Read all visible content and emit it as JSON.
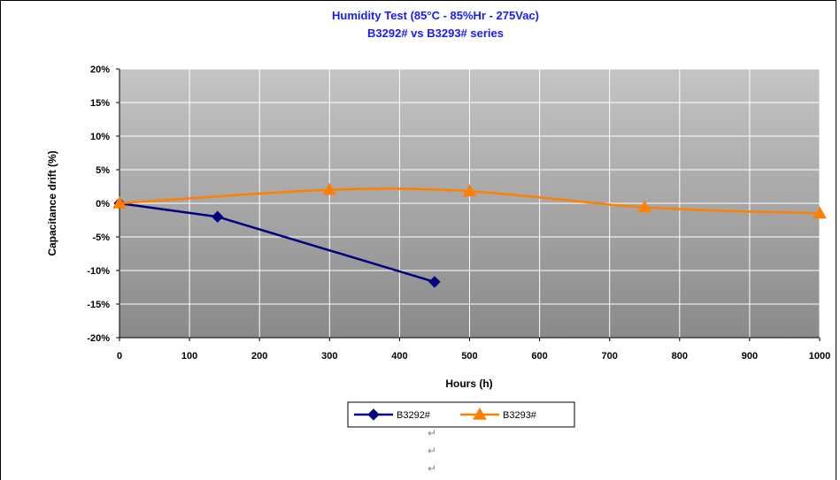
{
  "chart_data": {
    "type": "line",
    "title": "Humidity Test  (85°C - 85%Hr - 275Vac)",
    "subtitle": "B3292# vs B3293# series",
    "xlabel": "Hours (h)",
    "ylabel": "Capacitance drift (%)",
    "xlim": [
      0,
      1000
    ],
    "ylim": [
      -20,
      20
    ],
    "x_ticks": [
      0,
      100,
      200,
      300,
      400,
      500,
      600,
      700,
      800,
      900,
      1000
    ],
    "x_tick_labels": [
      "0",
      "100",
      "200",
      "300",
      "400",
      "500",
      "600",
      "700",
      "800",
      "900",
      "1000"
    ],
    "y_ticks": [
      -20,
      -15,
      -10,
      -5,
      0,
      5,
      10,
      15,
      20
    ],
    "y_tick_labels": [
      "-20%",
      "-15%",
      "-10%",
      "-5%",
      "0%",
      "5%",
      "10%",
      "15%",
      "20%"
    ],
    "grid": true,
    "legend_position": "bottom-center",
    "series": [
      {
        "name": "B3292#",
        "color": "#000080",
        "marker": "diamond",
        "smooth": false,
        "x": [
          0,
          140,
          450
        ],
        "y": [
          0,
          -2,
          -11.7
        ]
      },
      {
        "name": "B3293#",
        "color": "#ff7f00",
        "marker": "triangle",
        "smooth": true,
        "x": [
          0,
          300,
          500,
          750,
          1000
        ],
        "y": [
          0,
          2,
          1.8,
          -0.6,
          -1.5
        ]
      }
    ]
  },
  "paragraph_marks": [
    "↵",
    "↵",
    "↵"
  ]
}
